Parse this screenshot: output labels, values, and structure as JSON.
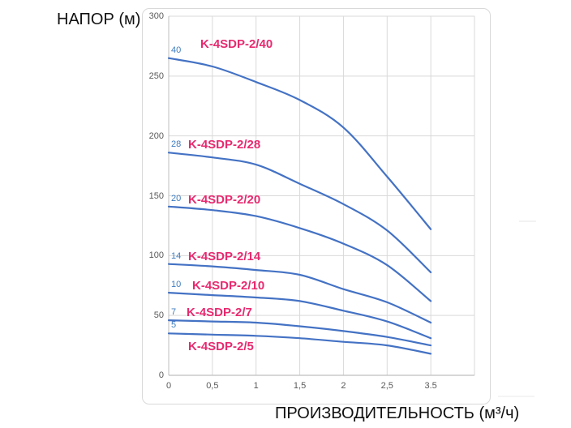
{
  "page": {
    "background": "#ffffff"
  },
  "y_axis_title": "НАПОР (м)",
  "x_axis_title": "ПРОИЗВОДИТЕЛЬНОСТЬ (м³/ч)",
  "chart_data": {
    "type": "line",
    "title": "",
    "xlabel": "ПРОИЗВОДИТЕЛЬНОСТЬ (м³/ч)",
    "ylabel": "НАПОР (м)",
    "x_tick_labels": [
      "0",
      "0,5",
      "1",
      "1,5",
      "2",
      "2,5",
      "3.5"
    ],
    "x_gridline_count": 8,
    "y_ticks": [
      0,
      50,
      100,
      150,
      200,
      250,
      300
    ],
    "ylim": [
      0,
      300
    ],
    "grid": true,
    "legend_position": "inline-labels",
    "colors": {
      "curve": "#4472c4",
      "curve_label": "#e72a6f",
      "stage_label": "#3f7cbf",
      "gridline": "#d9d9d9",
      "axis_line": "#bfbfbf",
      "tick_text": "#595959"
    },
    "series": [
      {
        "name": "K-4SDP-2/40",
        "stage_label": "40",
        "values": [
          265,
          258,
          245,
          230,
          207,
          166,
          122
        ],
        "label_dx": 15,
        "label_dy": -26
      },
      {
        "name": "K-4SDP-2/28",
        "stage_label": "28",
        "values": [
          186,
          182,
          176,
          160,
          143,
          121,
          86
        ],
        "label_dx": 0,
        "label_dy": -18
      },
      {
        "name": "K-4SDP-2/20",
        "stage_label": "20",
        "values": [
          141,
          138,
          133,
          123,
          110,
          92,
          62
        ],
        "label_dx": 0,
        "label_dy": -17
      },
      {
        "name": "K-4SDP-2/14",
        "stage_label": "14",
        "values": [
          93,
          91,
          88,
          84,
          72,
          61,
          44
        ],
        "label_dx": 0,
        "label_dy": -18
      },
      {
        "name": "K-4SDP-2/10",
        "stage_label": "10",
        "values": [
          69,
          67,
          65,
          62,
          54,
          45,
          31
        ],
        "label_dx": 5,
        "label_dy": -17
      },
      {
        "name": "K-4SDP-2/7",
        "stage_label": "7",
        "values": [
          46,
          45,
          44,
          41,
          37,
          32,
          25
        ],
        "label_dx": -2,
        "label_dy": -18
      },
      {
        "name": "K-4SDP-2/5",
        "stage_label": "5",
        "values": [
          35,
          34,
          33,
          31,
          28,
          25,
          18
        ],
        "label_dx": 0,
        "label_dy": 8
      }
    ]
  }
}
